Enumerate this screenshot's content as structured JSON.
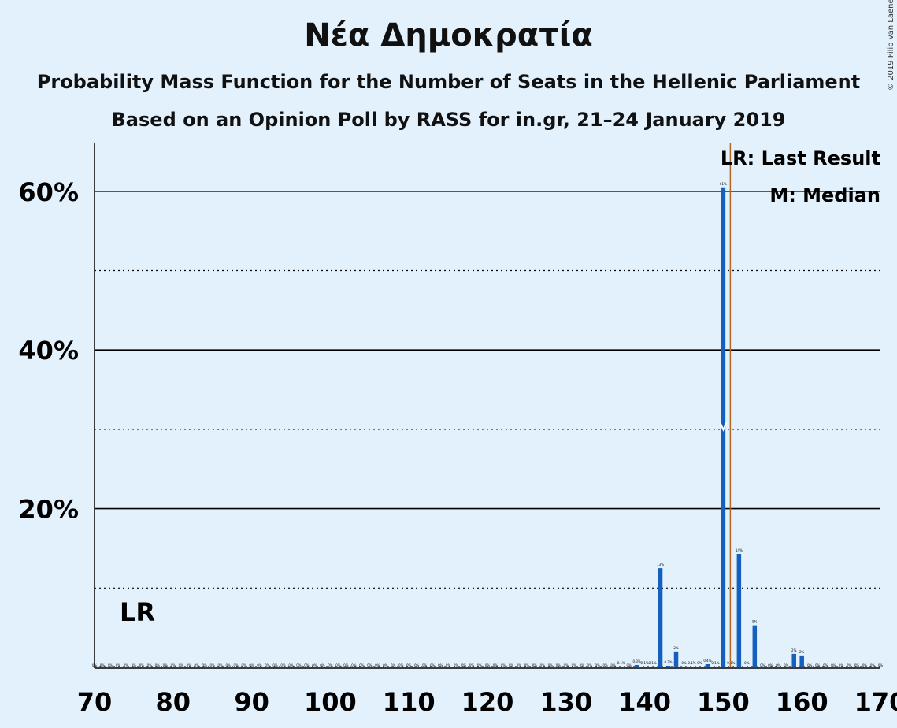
{
  "title": "Νέα Δημοκρατία",
  "subtitle": "Probability Mass Function for the Number of Seats in the Hellenic Parliament",
  "subtitle2": "Based on an Opinion Poll by RASS for in.gr, 21–24 January 2019",
  "copyright": "© 2019 Filip van Laenen",
  "colors": {
    "background": "#e3f1fd",
    "bar": "#1560bd",
    "last_result_line": "#b5651d",
    "grid": "#000000"
  },
  "chart_data": {
    "type": "bar",
    "title": "Νέα Δημοκρατία",
    "xlabel": "",
    "ylabel": "",
    "xlim": [
      70,
      170
    ],
    "ylim": [
      0,
      66
    ],
    "x_ticks": [
      70,
      80,
      90,
      100,
      110,
      120,
      130,
      140,
      150,
      160,
      170
    ],
    "x_tick_labels": [
      "70",
      "80",
      "90",
      "100",
      "110",
      "120",
      "130",
      "140",
      "150",
      "160",
      "170"
    ],
    "y_ticks_solid": [
      20,
      40,
      60
    ],
    "y_tick_labels": [
      "20%",
      "40%",
      "60%"
    ],
    "y_ticks_dotted": [
      10,
      30,
      50
    ],
    "grid": true,
    "legend_position": "top-right",
    "legend": [
      "LR: Last Result",
      "M: Median"
    ],
    "last_result_marker": "LR",
    "last_result_seat": 151,
    "median_seat": 150,
    "seats": [
      137,
      139,
      140,
      141,
      142,
      143,
      144,
      145,
      146,
      147,
      148,
      149,
      150,
      151,
      152,
      153,
      154,
      159,
      160
    ],
    "values": [
      0.1,
      0.3,
      0.1,
      0.1,
      12.5,
      0.2,
      2.0,
      0.1,
      0.1,
      0.1,
      0.4,
      0.1,
      60.5,
      0.1,
      14.3,
      0.1,
      5.3,
      1.7,
      1.5
    ],
    "bar_labels": [
      "0.1%",
      "0.3%",
      "0.1%",
      "0.1%",
      "13%",
      "0.2%",
      "2%",
      "0%",
      "0.1%",
      "0%",
      "0.4%",
      "0.1%",
      "61%",
      "0.1%",
      "14%",
      "0%",
      "5%",
      "2%",
      "2%"
    ],
    "zero_label": "0%"
  }
}
